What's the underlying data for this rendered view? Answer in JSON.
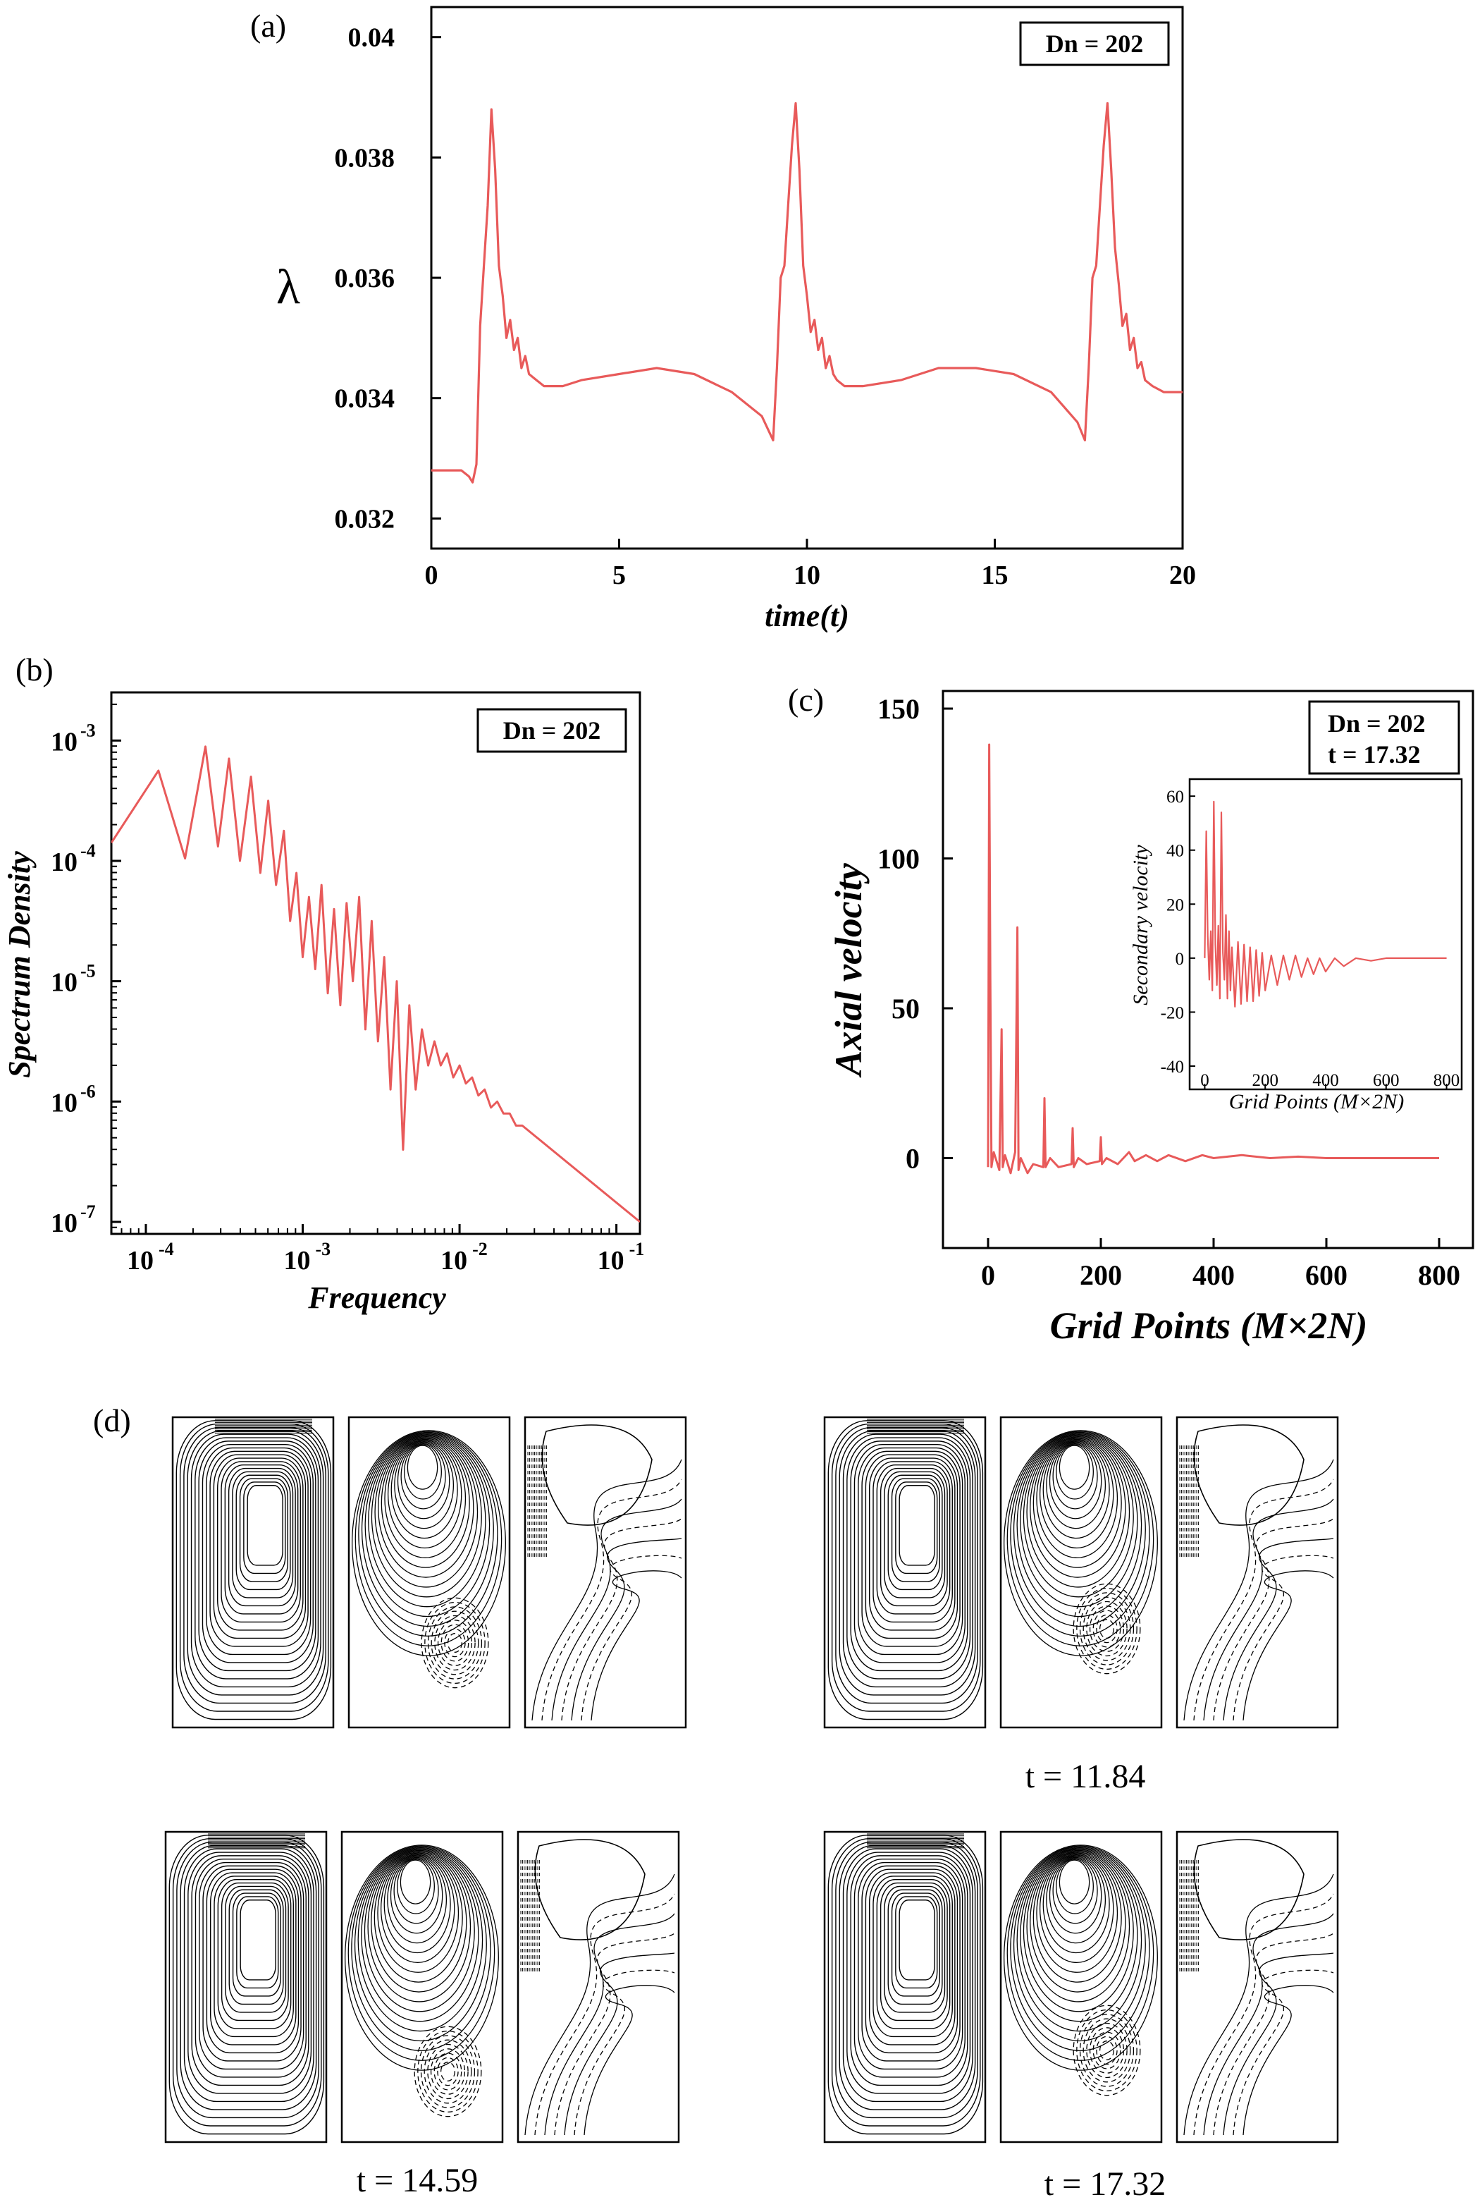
{
  "figure_labels": {
    "a": "(a)",
    "b": "(b)",
    "c": "(c)",
    "d": "(d)"
  },
  "chart_data": [
    {
      "id": "a",
      "type": "line",
      "legend": "Dn = 202",
      "xlabel": "time(t)",
      "ylabel": "λ",
      "xlim": [
        0,
        20
      ],
      "ylim": [
        0.0315,
        0.0405
      ],
      "xticks": [
        0,
        5,
        10,
        15,
        20
      ],
      "xtick_labels": [
        "0",
        "5",
        "10",
        "15",
        "20"
      ],
      "yticks": [
        0.032,
        0.034,
        0.036,
        0.038,
        0.04
      ],
      "ytick_labels": [
        "0.032",
        "0.034",
        "0.036",
        "0.038",
        "0.04"
      ],
      "series": [
        {
          "name": "λ",
          "color": "#e85a5a",
          "x": [
            0,
            0.8,
            1.0,
            1.1,
            1.2,
            1.3,
            1.4,
            1.5,
            1.6,
            1.7,
            1.8,
            1.9,
            2.0,
            2.1,
            2.2,
            2.3,
            2.4,
            2.5,
            2.6,
            2.8,
            3.0,
            3.5,
            4.0,
            5.0,
            6.0,
            7.0,
            8.0,
            8.8,
            9.1,
            9.2,
            9.3,
            9.4,
            9.5,
            9.6,
            9.7,
            9.8,
            9.9,
            10.0,
            10.1,
            10.2,
            10.3,
            10.4,
            10.5,
            10.6,
            10.7,
            10.8,
            11.0,
            11.5,
            12.5,
            13.5,
            14.5,
            15.5,
            16.5,
            17.2,
            17.4,
            17.5,
            17.6,
            17.7,
            17.8,
            17.9,
            18.0,
            18.1,
            18.2,
            18.3,
            18.4,
            18.5,
            18.6,
            18.7,
            18.8,
            18.9,
            19.0,
            19.2,
            19.5,
            20.0
          ],
          "values": [
            0.0328,
            0.0328,
            0.0327,
            0.0326,
            0.0329,
            0.0352,
            0.0362,
            0.0372,
            0.0388,
            0.0378,
            0.0362,
            0.0357,
            0.035,
            0.0353,
            0.0348,
            0.035,
            0.0345,
            0.0347,
            0.0344,
            0.0343,
            0.0342,
            0.0342,
            0.0343,
            0.0344,
            0.0345,
            0.0344,
            0.0341,
            0.0337,
            0.0333,
            0.0345,
            0.036,
            0.0362,
            0.0372,
            0.0382,
            0.0389,
            0.0378,
            0.0362,
            0.0357,
            0.0351,
            0.0353,
            0.0348,
            0.035,
            0.0345,
            0.0347,
            0.0344,
            0.0343,
            0.0342,
            0.0342,
            0.0343,
            0.0345,
            0.0345,
            0.0344,
            0.0341,
            0.0336,
            0.0333,
            0.0345,
            0.036,
            0.0362,
            0.0372,
            0.0382,
            0.0389,
            0.0378,
            0.0365,
            0.0359,
            0.0352,
            0.0354,
            0.0348,
            0.035,
            0.0345,
            0.0346,
            0.0343,
            0.0342,
            0.0341,
            0.0341
          ]
        }
      ]
    },
    {
      "id": "b",
      "type": "line",
      "scale": "log-log",
      "legend": "Dn = 202",
      "xlabel": "Frequency",
      "ylabel": "Spectrum Density",
      "xlim_log10": [
        -4.22,
        -0.85
      ],
      "ylim_log10": [
        -7.1,
        -2.6
      ],
      "xtick_exponents": [
        -4,
        -3,
        -2,
        -1
      ],
      "ytick_exponents": [
        -7,
        -6,
        -5,
        -4,
        -3
      ],
      "series": [
        {
          "name": "spectrum",
          "color": "#e85a5a",
          "x_log10": [
            -4.22,
            -3.92,
            -3.75,
            -3.62,
            -3.54,
            -3.47,
            -3.4,
            -3.33,
            -3.27,
            -3.22,
            -3.17,
            -3.12,
            -3.08,
            -3.04,
            -3.0,
            -2.96,
            -2.92,
            -2.88,
            -2.84,
            -2.8,
            -2.76,
            -2.72,
            -2.68,
            -2.64,
            -2.6,
            -2.56,
            -2.52,
            -2.48,
            -2.44,
            -2.4,
            -2.36,
            -2.32,
            -2.28,
            -2.24,
            -2.2,
            -2.16,
            -2.12,
            -2.08,
            -2.04,
            -2.0,
            -1.96,
            -1.92,
            -1.88,
            -1.84,
            -1.8,
            -1.76,
            -1.72,
            -1.68,
            -1.64,
            -1.6,
            -0.85
          ],
          "y_log10": [
            -3.85,
            -3.25,
            -3.98,
            -3.05,
            -3.88,
            -3.15,
            -4.0,
            -3.3,
            -4.1,
            -3.5,
            -4.2,
            -3.75,
            -4.5,
            -4.1,
            -4.8,
            -4.3,
            -4.9,
            -4.2,
            -5.1,
            -4.4,
            -5.2,
            -4.35,
            -5.0,
            -4.3,
            -5.4,
            -4.5,
            -5.5,
            -4.8,
            -5.9,
            -5.0,
            -6.4,
            -5.2,
            -5.9,
            -5.4,
            -5.7,
            -5.5,
            -5.7,
            -5.6,
            -5.8,
            -5.7,
            -5.85,
            -5.8,
            -5.95,
            -5.9,
            -6.05,
            -6.0,
            -6.1,
            -6.1,
            -6.2,
            -6.2,
            -7.0
          ]
        }
      ]
    },
    {
      "id": "c",
      "type": "line",
      "legend": [
        "Dn = 202",
        "t = 17.32"
      ],
      "xlabel": "Grid Points (M×2N)",
      "ylabel": "Axial velocity",
      "xlim": [
        -80,
        860
      ],
      "ylim": [
        -30,
        150
      ],
      "xticks": [
        0,
        200,
        400,
        600,
        800
      ],
      "xtick_labels": [
        "0",
        "200",
        "400",
        "600",
        "800"
      ],
      "yticks": [
        0,
        50,
        100,
        150
      ],
      "ytick_labels": [
        "0",
        "50",
        "100",
        "150"
      ],
      "series": [
        {
          "name": "axial velocity",
          "color": "#e85a5a",
          "x": [
            0,
            2,
            4,
            6,
            10,
            20,
            24,
            26,
            30,
            40,
            48,
            52,
            54,
            58,
            70,
            80,
            98,
            100,
            102,
            110,
            125,
            148,
            150,
            152,
            160,
            175,
            198,
            200,
            202,
            210,
            230,
            250,
            260,
            280,
            300,
            320,
            350,
            380,
            400,
            450,
            500,
            550,
            600,
            700,
            800
          ],
          "values": [
            -3,
            138,
            60,
            -3,
            2,
            -4,
            43,
            -3,
            1,
            -5,
            2,
            77,
            -4,
            0,
            -5,
            -2,
            -3,
            20,
            -3,
            0,
            -3,
            -2,
            10,
            -3,
            0,
            -2,
            -1,
            7,
            -2,
            0,
            -2,
            2,
            -1,
            1,
            -1,
            1,
            -1,
            1,
            0,
            1,
            0,
            0.5,
            0,
            0,
            0
          ]
        }
      ],
      "inset": {
        "xlabel": "Grid Points (M×2N)",
        "ylabel": "Secondary velocity",
        "xlim": [
          -50,
          850
        ],
        "ylim": [
          -40,
          65
        ],
        "xticks": [
          0,
          200,
          400,
          600,
          800
        ],
        "xtick_labels": [
          "0",
          "200",
          "400",
          "600",
          "800"
        ],
        "yticks": [
          -40,
          -20,
          0,
          20,
          40,
          60
        ],
        "ytick_labels": [
          "-40",
          "-20",
          "0",
          "20",
          "40",
          "60"
        ],
        "x": [
          0,
          5,
          10,
          15,
          20,
          25,
          30,
          35,
          40,
          45,
          50,
          55,
          60,
          65,
          70,
          75,
          80,
          85,
          90,
          100,
          110,
          120,
          130,
          140,
          150,
          160,
          170,
          180,
          190,
          200,
          220,
          240,
          260,
          280,
          300,
          320,
          340,
          360,
          380,
          400,
          430,
          460,
          500,
          550,
          600,
          700,
          800
        ],
        "values": [
          0,
          47,
          8,
          -8,
          10,
          -12,
          58,
          5,
          -10,
          12,
          -15,
          54,
          2,
          -8,
          16,
          -15,
          10,
          -12,
          4,
          -18,
          6,
          -17,
          5,
          -16,
          4,
          -16,
          3,
          -14,
          2,
          -12,
          1,
          -10,
          1,
          -8,
          1,
          -7,
          0,
          -6,
          0,
          -5,
          0,
          -3,
          0,
          -1,
          0,
          0,
          0
        ]
      }
    }
  ],
  "panel_d": {
    "captions": [
      "t = 11.84",
      "t = 14.59",
      "t = 17.32"
    ]
  }
}
